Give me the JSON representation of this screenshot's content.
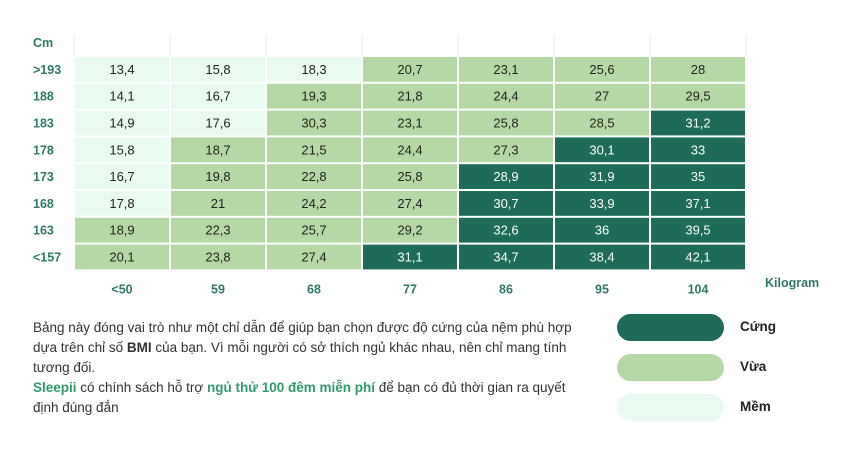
{
  "chart_data": {
    "type": "heatmap",
    "y_unit": "Cm",
    "x_unit": "Kilogram",
    "rows": [
      ">193",
      "188",
      "183",
      "178",
      "173",
      "168",
      "163",
      "<157"
    ],
    "columns": [
      "<50",
      "59",
      "68",
      "77",
      "86",
      "95",
      "104"
    ],
    "values": [
      [
        "13,4",
        "15,8",
        "18,3",
        "20,7",
        "23,1",
        "25,6",
        "28"
      ],
      [
        "14,1",
        "16,7",
        "19,3",
        "21,8",
        "24,4",
        "27",
        "29,5"
      ],
      [
        "14,9",
        "17,6",
        "30,3",
        "23,1",
        "25,8",
        "28,5",
        "31,2"
      ],
      [
        "15,8",
        "18,7",
        "21,5",
        "24,4",
        "27,3",
        "30,1",
        "33"
      ],
      [
        "16,7",
        "19,8",
        "22,8",
        "25,8",
        "28,9",
        "31,9",
        "35"
      ],
      [
        "17,8",
        "21",
        "24,2",
        "27,4",
        "30,7",
        "33,9",
        "37,1"
      ],
      [
        "18,9",
        "22,3",
        "25,7",
        "29,2",
        "32,6",
        "36",
        "39,5"
      ],
      [
        "20,1",
        "23,8",
        "27,4",
        "31,1",
        "34,7",
        "38,4",
        "42,1"
      ]
    ],
    "categories_grid": [
      [
        "soft",
        "soft",
        "soft",
        "medium",
        "medium",
        "medium",
        "medium"
      ],
      [
        "soft",
        "soft",
        "medium",
        "medium",
        "medium",
        "medium",
        "medium"
      ],
      [
        "soft",
        "soft",
        "medium",
        "medium",
        "medium",
        "medium",
        "firm"
      ],
      [
        "soft",
        "medium",
        "medium",
        "medium",
        "medium",
        "firm",
        "firm"
      ],
      [
        "soft",
        "medium",
        "medium",
        "medium",
        "firm",
        "firm",
        "firm"
      ],
      [
        "soft",
        "medium",
        "medium",
        "medium",
        "firm",
        "firm",
        "firm"
      ],
      [
        "medium",
        "medium",
        "medium",
        "medium",
        "firm",
        "firm",
        "firm"
      ],
      [
        "medium",
        "medium",
        "medium",
        "firm",
        "firm",
        "firm",
        "firm"
      ]
    ]
  },
  "colors": {
    "firm": "#1d6b58",
    "medium": "#b5d9a4",
    "soft": "#e9fbf0",
    "label": "#2f7a64",
    "highlight": "#2f9a6e"
  },
  "legend": [
    {
      "key": "firm",
      "label": "Cứng"
    },
    {
      "key": "medium",
      "label": "Vừa"
    },
    {
      "key": "soft",
      "label": "Mềm"
    }
  ],
  "note": {
    "line1_pre": "Bảng này đóng vai trò như một chỉ dẫn để giúp bạn chọn được độ cứng của nệm phù hợp dựa trên chỉ số ",
    "line1_bold": "BMI",
    "line1_post": " của bạn. Vì mỗi người có sở thích ngủ khác nhau, nên chỉ mang tính tương đối.",
    "brand": "Sleepii",
    "line2_mid": " có chính sách hỗ trợ ",
    "offer": "ngủ thử 100 đêm miễn phí",
    "line2_post": " để bạn có đủ thời gian ra quyết định đúng đắn"
  }
}
